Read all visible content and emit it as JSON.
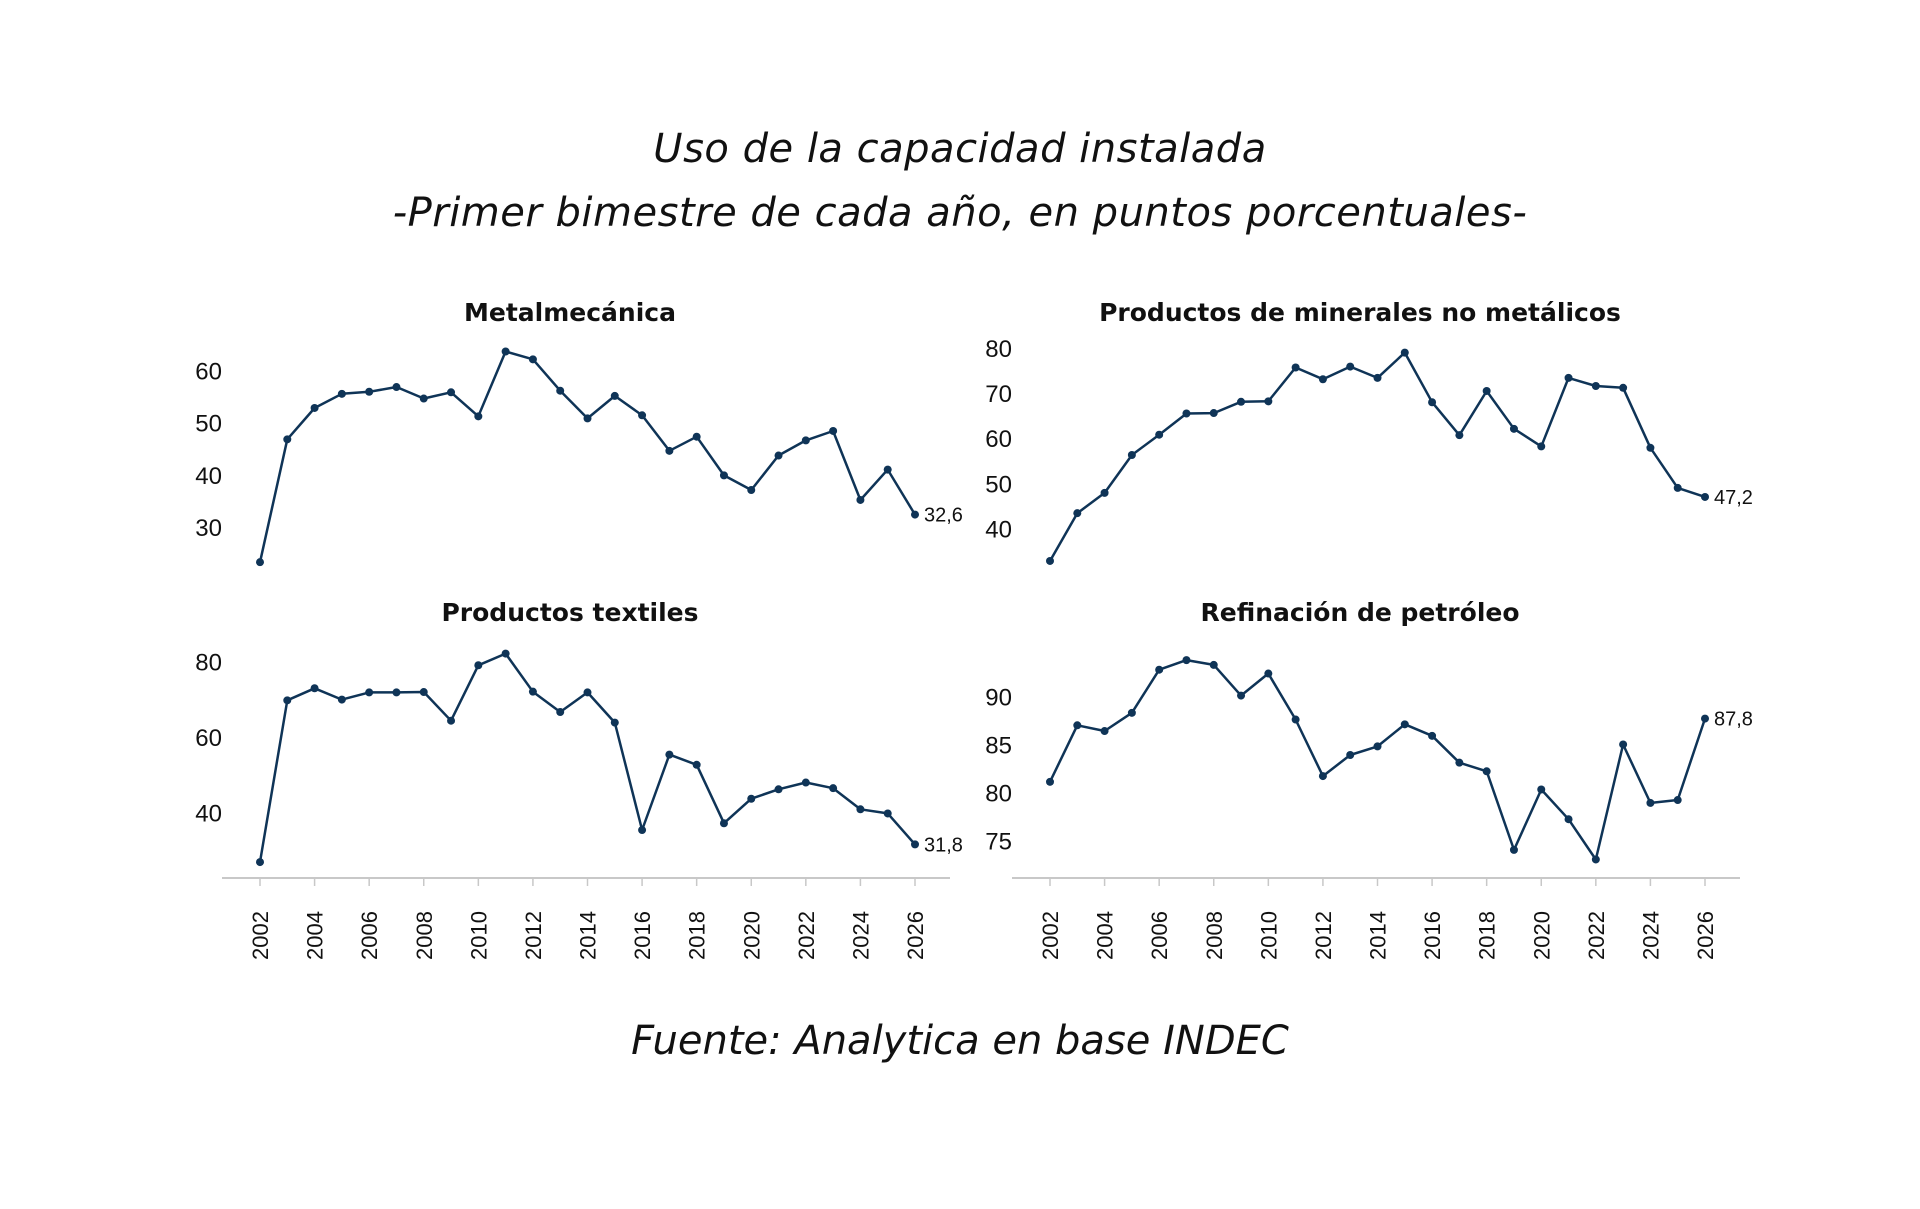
{
  "title": "Uso de la capacidad instalada",
  "subtitle": "-Primer bimestre de cada año, en puntos porcentuales-",
  "source": "Fuente: Analytica en base INDEC",
  "colors": {
    "line": "#0f3457",
    "axis": "#c8c8c8",
    "text": "#111111"
  },
  "chart_data": [
    {
      "type": "line",
      "title": "Metalmecánica",
      "x": [
        2002,
        2003,
        2004,
        2005,
        2006,
        2007,
        2008,
        2009,
        2010,
        2011,
        2012,
        2013,
        2014,
        2015,
        2016,
        2017,
        2018,
        2019,
        2020,
        2021,
        2022,
        2023,
        2024,
        2025,
        2026
      ],
      "values": [
        23.5,
        47.0,
        53.0,
        55.7,
        56.1,
        57.0,
        54.8,
        56.0,
        51.4,
        63.8,
        62.3,
        56.3,
        51.0,
        55.3,
        51.6,
        44.8,
        47.5,
        40.1,
        37.3,
        43.9,
        46.8,
        48.6,
        35.4,
        41.2,
        32.6
      ],
      "yticks": [
        30,
        40,
        50,
        60
      ],
      "ylim": [
        22,
        66
      ],
      "end_label": "32,6",
      "xlabel": "",
      "ylabel": ""
    },
    {
      "type": "line",
      "title": "Productos de minerales no metálicos",
      "x": [
        2002,
        2003,
        2004,
        2005,
        2006,
        2007,
        2008,
        2009,
        2010,
        2011,
        2012,
        2013,
        2014,
        2015,
        2016,
        2017,
        2018,
        2019,
        2020,
        2021,
        2022,
        2023,
        2024,
        2025,
        2026
      ],
      "values": [
        33.0,
        43.6,
        48.1,
        56.5,
        61.0,
        65.7,
        65.8,
        68.3,
        68.4,
        75.9,
        73.3,
        76.1,
        73.6,
        79.2,
        68.2,
        60.9,
        70.7,
        62.3,
        58.4,
        73.6,
        71.8,
        71.4,
        58.1,
        49.2,
        47.2
      ],
      "yticks": [
        40,
        50,
        60,
        70,
        80
      ],
      "ylim": [
        31,
        82
      ],
      "end_label": "47,2",
      "xlabel": "",
      "ylabel": ""
    },
    {
      "type": "line",
      "title": "Productos textiles",
      "x": [
        2002,
        2003,
        2004,
        2005,
        2006,
        2007,
        2008,
        2009,
        2010,
        2011,
        2012,
        2013,
        2014,
        2015,
        2016,
        2017,
        2018,
        2019,
        2020,
        2021,
        2022,
        2023,
        2024,
        2025,
        2026
      ],
      "values": [
        27.1,
        70.0,
        73.2,
        70.2,
        72.1,
        72.1,
        72.2,
        64.6,
        79.3,
        82.4,
        72.3,
        66.9,
        72.1,
        64.1,
        35.6,
        55.6,
        52.9,
        37.4,
        43.9,
        46.4,
        48.2,
        46.7,
        41.1,
        40.0,
        31.8
      ],
      "yticks": [
        40,
        60,
        80
      ],
      "ylim": [
        25,
        86
      ],
      "end_label": "31,8",
      "xlabel": "",
      "ylabel": ""
    },
    {
      "type": "line",
      "title": "Refinación de petróleo",
      "x": [
        2002,
        2003,
        2004,
        2005,
        2006,
        2007,
        2008,
        2009,
        2010,
        2011,
        2012,
        2013,
        2014,
        2015,
        2016,
        2017,
        2018,
        2019,
        2020,
        2021,
        2022,
        2023,
        2024,
        2025,
        2026
      ],
      "values": [
        81.2,
        87.1,
        86.5,
        88.4,
        92.9,
        93.9,
        93.4,
        90.2,
        92.5,
        87.7,
        81.8,
        84.0,
        84.9,
        87.2,
        86.0,
        83.2,
        82.3,
        74.1,
        80.4,
        77.3,
        73.1,
        85.1,
        79.0,
        79.3,
        87.8
      ],
      "yticks": [
        75,
        80,
        85,
        90
      ],
      "ylim": [
        72,
        96
      ],
      "end_label": "87,8",
      "xlabel": "",
      "ylabel": ""
    }
  ],
  "x_tick_labels": [
    "2002",
    "2004",
    "2006",
    "2008",
    "2010",
    "2012",
    "2014",
    "2016",
    "2018",
    "2020",
    "2022",
    "2024",
    "2026"
  ]
}
